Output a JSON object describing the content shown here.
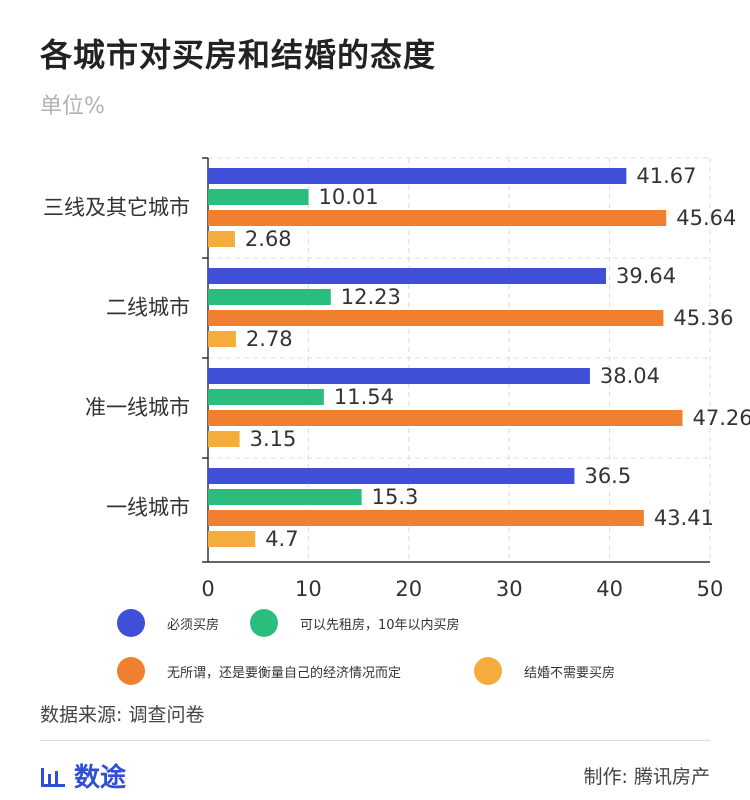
{
  "title": "各城市对买房和结婚的态度",
  "subtitle": "单位%",
  "chart_data": {
    "type": "bar",
    "orientation": "horizontal",
    "categories": [
      "三线及其它城市",
      "二线城市",
      "准一线城市",
      "一线城市"
    ],
    "series": [
      {
        "name": "必须买房",
        "color": "#3f4fd8",
        "values": [
          41.67,
          39.64,
          38.04,
          36.5
        ]
      },
      {
        "name": "可以先租房，10年以内买房",
        "color": "#2bbd7e",
        "values": [
          10.01,
          12.23,
          11.54,
          15.3
        ]
      },
      {
        "name": "无所谓，还是要衡量自己的经济情况而定",
        "color": "#f07f2f",
        "values": [
          45.64,
          45.36,
          47.26,
          43.41
        ]
      },
      {
        "name": "结婚不需要买房",
        "color": "#f4ad3d",
        "values": [
          2.68,
          2.78,
          3.15,
          4.7
        ]
      }
    ],
    "xlim": [
      0,
      50
    ],
    "xticks": [
      0,
      10,
      20,
      30,
      40,
      50
    ],
    "grid": true,
    "legend_position": "bottom"
  },
  "source": "数据来源: 调查问卷",
  "logo_text": "数途",
  "maker": "制作: 腾讯房产"
}
